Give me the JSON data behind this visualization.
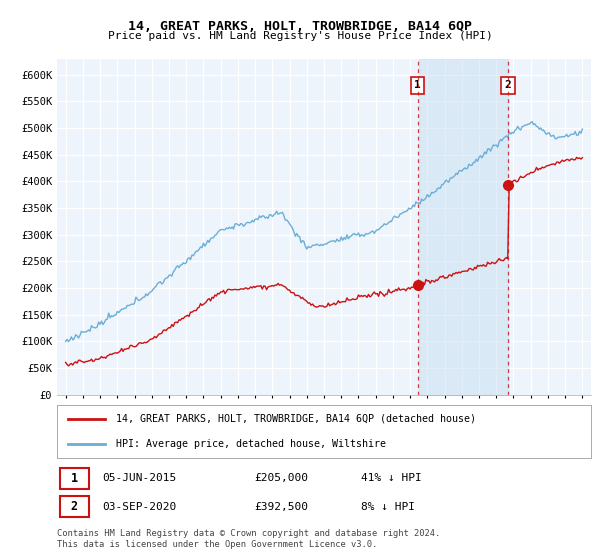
{
  "title": "14, GREAT PARKS, HOLT, TROWBRIDGE, BA14 6QP",
  "subtitle": "Price paid vs. HM Land Registry's House Price Index (HPI)",
  "ylabel_ticks": [
    "£0",
    "£50K",
    "£100K",
    "£150K",
    "£200K",
    "£250K",
    "£300K",
    "£350K",
    "£400K",
    "£450K",
    "£500K",
    "£550K",
    "£600K"
  ],
  "ytick_values": [
    0,
    50000,
    100000,
    150000,
    200000,
    250000,
    300000,
    350000,
    400000,
    450000,
    500000,
    550000,
    600000
  ],
  "ylim": [
    0,
    630000
  ],
  "hpi_color": "#6baed6",
  "price_color": "#cc1111",
  "dashed_color": "#cc1111",
  "grid_color": "#cccccc",
  "plot_bg": "#eef4fb",
  "sale1_x": 2015.43,
  "sale1_y": 205000,
  "sale2_x": 2020.67,
  "sale2_y": 392500,
  "sale1_date": "05-JUN-2015",
  "sale1_price": "£205,000",
  "sale1_hpi": "41% ↓ HPI",
  "sale2_date": "03-SEP-2020",
  "sale2_price": "£392,500",
  "sale2_hpi": "8% ↓ HPI",
  "legend_label1": "14, GREAT PARKS, HOLT, TROWBRIDGE, BA14 6QP (detached house)",
  "legend_label2": "HPI: Average price, detached house, Wiltshire",
  "footer": "Contains HM Land Registry data © Crown copyright and database right 2024.\nThis data is licensed under the Open Government Licence v3.0.",
  "xlim": [
    1994.5,
    2025.5
  ],
  "xticks": [
    1995,
    1996,
    1997,
    1998,
    1999,
    2000,
    2001,
    2002,
    2003,
    2004,
    2005,
    2006,
    2007,
    2008,
    2009,
    2010,
    2011,
    2012,
    2013,
    2014,
    2015,
    2016,
    2017,
    2018,
    2019,
    2020,
    2021,
    2022,
    2023,
    2024,
    2025
  ]
}
